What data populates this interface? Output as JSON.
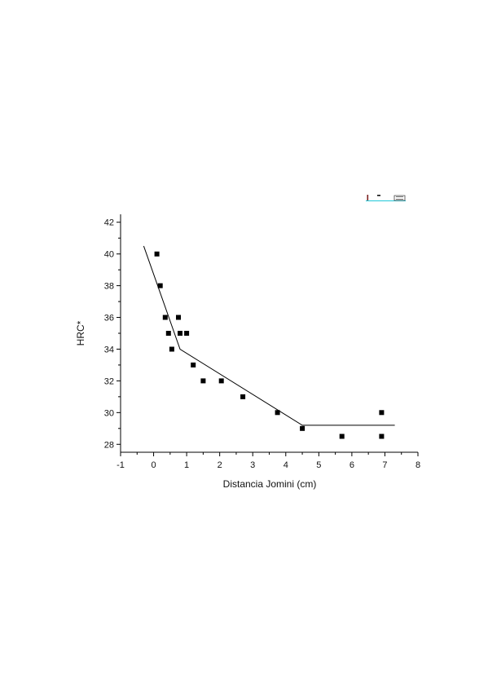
{
  "chart_data": {
    "type": "scatter",
    "title": "",
    "xlabel": "Distancia Jomini (cm)",
    "ylabel": "HRC*",
    "xlim": [
      -1,
      8
    ],
    "ylim": [
      27.5,
      42.5
    ],
    "xticks": [
      -1,
      0,
      1,
      2,
      3,
      4,
      5,
      6,
      7,
      8
    ],
    "yticks": [
      28,
      30,
      32,
      34,
      36,
      38,
      40,
      42
    ],
    "grid": false,
    "series": [
      {
        "type": "scatter",
        "marker": "square",
        "color": "#000000",
        "points": [
          [
            0.1,
            40
          ],
          [
            0.2,
            38
          ],
          [
            0.35,
            36
          ],
          [
            0.45,
            35
          ],
          [
            0.55,
            34
          ],
          [
            0.75,
            36
          ],
          [
            0.8,
            35
          ],
          [
            1.0,
            35
          ],
          [
            1.2,
            33
          ],
          [
            1.5,
            32
          ],
          [
            2.05,
            32
          ],
          [
            2.7,
            31
          ],
          [
            3.75,
            30
          ],
          [
            4.5,
            29
          ],
          [
            5.7,
            28.5
          ],
          [
            6.9,
            30
          ],
          [
            6.9,
            28.5
          ]
        ]
      },
      {
        "type": "line",
        "color": "#000000",
        "points": [
          [
            -0.3,
            40.5
          ],
          [
            0.8,
            34
          ],
          [
            4.5,
            29.2
          ],
          [
            7.3,
            29.2
          ]
        ]
      }
    ]
  }
}
